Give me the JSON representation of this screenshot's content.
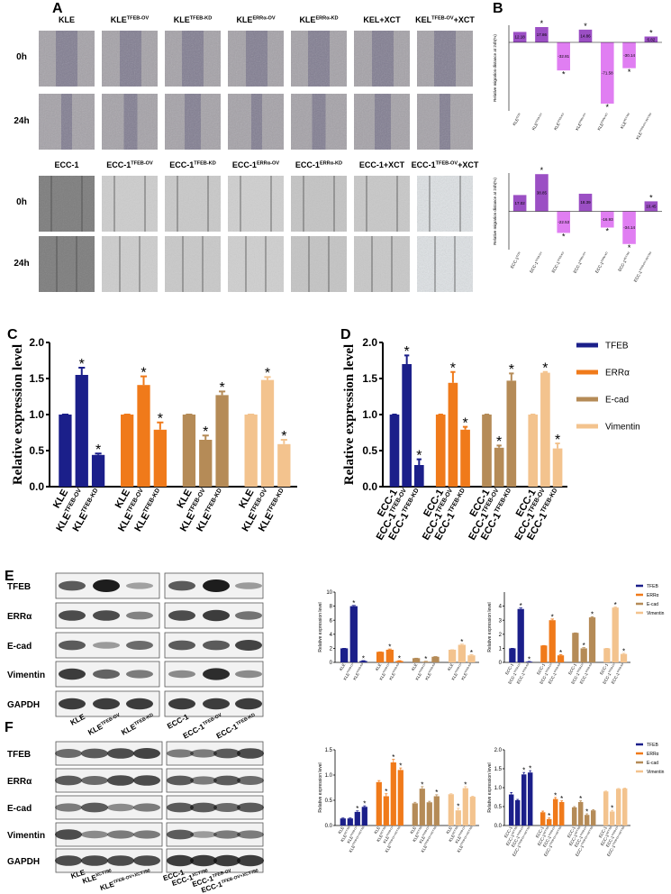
{
  "panel_labels": [
    "A",
    "B",
    "C",
    "D",
    "E",
    "F"
  ],
  "panel_a": {
    "kle_columns": [
      {
        "text": "KLE"
      },
      {
        "text": "KLE",
        "sup": "TFEB-OV"
      },
      {
        "text": "KLE",
        "sup": "TFEB-KD"
      },
      {
        "text": "KLE",
        "sup": "ERRα-OV"
      },
      {
        "text": "KLE",
        "sup": "ERRα-KD"
      },
      {
        "text": "KEL+XCT"
      },
      {
        "text": "KEL",
        "sup": "TFEB-OV",
        "after": "+XCT"
      }
    ],
    "ecc_columns": [
      {
        "text": "ECC-1"
      },
      {
        "text": "ECC-1",
        "sup": "TFEB-OV"
      },
      {
        "text": "ECC-1",
        "sup": "TFEB-KD"
      },
      {
        "text": "ECC-1",
        "sup": "ERRα-OV"
      },
      {
        "text": "ECC-1",
        "sup": "ERRα-KD"
      },
      {
        "text": "ECC-1+XCT"
      },
      {
        "text": "ECC-1",
        "sup": "TFEB-OV",
        "after": "+XCT"
      }
    ],
    "rows": [
      "0h",
      "24h"
    ]
  },
  "panel_e": {
    "proteins": [
      "TFEB",
      "ERRα",
      "E-cad",
      "Vimentin",
      "GAPDH"
    ],
    "lanes": [
      {
        "text": "KLE"
      },
      {
        "text": "KLE",
        "sup": "TFEB-OV"
      },
      {
        "text": "KLE",
        "sup": "TFEB-KD"
      },
      {
        "text": "ECC-1"
      },
      {
        "text": "ECC-1",
        "sup": "TFEB-OV"
      },
      {
        "text": "ECC-1",
        "sup": "TFEB-KD"
      }
    ]
  },
  "panel_f": {
    "proteins": [
      "TFEB",
      "ERRα",
      "E-cad",
      "Vimentin",
      "GAPDH"
    ],
    "lanes": [
      {
        "text": "KLE"
      },
      {
        "text": "KLE",
        "sup": "XCT790"
      },
      {
        "text": "KLE",
        "sup": "TFEB-OV+XCT790"
      },
      {
        "text": "ECC-1"
      },
      {
        "text": "ECC-1",
        "sup": "XCT790"
      },
      {
        "text": "ECC-1",
        "sup": "TFEB-OV"
      },
      {
        "text": "ECC-1",
        "sup": "TFEB-OV+XCT790"
      }
    ]
  },
  "chart_data": [
    {
      "type": "bar",
      "y_label": "Relative migration distance at 24h(%)",
      "sig_label": "*",
      "categories": [
        {
          "text": "KLE",
          "sup": "CON"
        },
        {
          "text": "KLE",
          "sup": "TFEB-OV"
        },
        {
          "text": "KLE",
          "sup": "TFEB-KD"
        },
        {
          "text": "KLE",
          "sup": "ERRα-OV"
        },
        {
          "text": "KLE",
          "sup": "ERRα-KD"
        },
        {
          "text": "KLE",
          "sup": "XCT790"
        },
        {
          "text": "KLE",
          "sup": "TFEB-OV+XCT790"
        }
      ],
      "values": [
        12.18,
        17.86,
        -32.81,
        14.86,
        -71.58,
        -30.14,
        6.82
      ],
      "colors": [
        "#9b4fc4",
        "#9b4fc4",
        "#e07ef2",
        "#9b4fc4",
        "#e07ef2",
        "#e07ef2",
        "#9b4fc4"
      ],
      "significant": [
        false,
        true,
        true,
        true,
        true,
        true,
        true
      ],
      "ylim": [
        -80,
        20
      ]
    },
    {
      "type": "bar",
      "y_label": "Relative migration distance at 24h(%)",
      "sig_label": "*",
      "categories": [
        {
          "text": "ECC-1",
          "sup": "CON"
        },
        {
          "text": "ECC-1",
          "sup": "TFEB-OV"
        },
        {
          "text": "ECC-1",
          "sup": "TFEB-KD"
        },
        {
          "text": "ECC-1",
          "sup": "ERRα-OV"
        },
        {
          "text": "ECC-1",
          "sup": "ERRα-KD"
        },
        {
          "text": "ECC-1",
          "sup": "XCT790"
        },
        {
          "text": "ECC-1",
          "sup": "TFEB-OV+XCT790"
        }
      ],
      "values": [
        17.02,
        38.85,
        -22.53,
        18.39,
        -16.93,
        -34.14,
        10.45
      ],
      "colors": [
        "#9b4fc4",
        "#9b4fc4",
        "#e07ef2",
        "#9b4fc4",
        "#e07ef2",
        "#e07ef2",
        "#9b4fc4"
      ],
      "significant": [
        false,
        true,
        true,
        false,
        true,
        true,
        true
      ],
      "ylim": [
        -40,
        40
      ]
    },
    {
      "type": "grouped_bar",
      "y_label": "Relative expression level",
      "sig_label": "*",
      "categories": [
        {
          "text": "KLE"
        },
        {
          "text": "KLE",
          "sup": "TFEB-OV"
        },
        {
          "text": "KLE",
          "sup": "TFEB-KD"
        }
      ],
      "series": [
        {
          "color": "#1b1f8a",
          "values": [
            1,
            1.55,
            0.44
          ],
          "errors": [
            0,
            0.1,
            0.02
          ],
          "significant": [
            false,
            true,
            true
          ]
        },
        {
          "color": "#f07a1a",
          "values": [
            1,
            1.41,
            0.79
          ],
          "errors": [
            0,
            0.12,
            0.1
          ],
          "significant": [
            false,
            true,
            true
          ]
        },
        {
          "color": "#b58b57",
          "values": [
            1,
            0.65,
            1.27
          ],
          "errors": [
            0,
            0.06,
            0.05
          ],
          "significant": [
            false,
            true,
            true
          ]
        },
        {
          "color": "#f3c38e",
          "values": [
            1,
            1.48,
            0.59
          ],
          "errors": [
            0,
            0.04,
            0.06
          ],
          "significant": [
            false,
            true,
            true
          ]
        }
      ],
      "ylim": [
        0,
        2
      ],
      "yticks": [
        {
          "value": 0,
          "label": "0.0"
        },
        0.5,
        {
          "value": 1,
          "label": "1.0"
        },
        1.5,
        {
          "value": 2,
          "label": "2.0"
        }
      ]
    },
    {
      "type": "grouped_bar",
      "y_label": "Relative expression level",
      "sig_label": "*",
      "legend": "right",
      "categories": [
        {
          "text": "ECC-1"
        },
        {
          "text": "ECC-1",
          "sup": "TFEB-OV"
        },
        {
          "text": "ECC-1",
          "sup": "TFEB-KD"
        }
      ],
      "series": [
        {
          "name": "TFEB",
          "color": "#1b1f8a",
          "values": [
            1,
            1.7,
            0.3
          ],
          "errors": [
            0,
            0.12,
            0.08
          ],
          "significant": [
            false,
            true,
            true
          ]
        },
        {
          "name": "ERRα",
          "color": "#f07a1a",
          "values": [
            1,
            1.44,
            0.79
          ],
          "errors": [
            0,
            0.15,
            0.04
          ],
          "significant": [
            false,
            true,
            true
          ]
        },
        {
          "name": "E-cad",
          "color": "#b58b57",
          "values": [
            1,
            0.54,
            1.47
          ],
          "errors": [
            0,
            0.03,
            0.1
          ],
          "significant": [
            false,
            true,
            true
          ]
        },
        {
          "name": "Vimentin",
          "color": "#f3c38e",
          "values": [
            1,
            1.58,
            0.53
          ],
          "errors": [
            0,
            0.01,
            0.07
          ],
          "significant": [
            false,
            true,
            true
          ]
        }
      ],
      "ylim": [
        0,
        2
      ],
      "yticks": [
        {
          "value": 0,
          "label": "0.0"
        },
        0.5,
        {
          "value": 1,
          "label": "1.0"
        },
        1.5,
        {
          "value": 2,
          "label": "2.0"
        }
      ]
    },
    {
      "type": "grouped_bar",
      "y_label": "Relative expression level",
      "sig_label": "*",
      "categories": [
        {
          "text": "KLE"
        },
        {
          "text": "KLE",
          "sup": "TFEB-OV"
        },
        {
          "text": "KLE",
          "sup": "TFEB-KD"
        }
      ],
      "series": [
        {
          "color": "#1b1f8a",
          "values": [
            2,
            8,
            0.2
          ],
          "errors": [
            0,
            0.1,
            0.05
          ],
          "significant": [
            false,
            true,
            true
          ]
        },
        {
          "color": "#f07a1a",
          "values": [
            1.5,
            1.8,
            0.2
          ],
          "errors": [
            0,
            0.1,
            0.05
          ],
          "significant": [
            false,
            true,
            true
          ]
        },
        {
          "color": "#b58b57",
          "values": [
            0.6,
            0.1,
            0.8
          ],
          "errors": [
            0,
            0.05,
            0.05
          ],
          "significant": [
            false,
            true,
            false
          ]
        },
        {
          "color": "#f3c38e",
          "values": [
            1.8,
            2.5,
            1
          ],
          "errors": [
            0,
            0.1,
            0.1
          ],
          "significant": [
            false,
            true,
            true
          ]
        }
      ],
      "ylim": [
        0,
        10
      ],
      "yticks": [
        0,
        2,
        4,
        6,
        8,
        10
      ]
    },
    {
      "type": "grouped_bar",
      "y_label": "Relative expression level",
      "sig_label": "*",
      "legend": "right",
      "categories": [
        {
          "text": "ECC-1"
        },
        {
          "text": "ECC-1",
          "sup": "TFEB-OV"
        },
        {
          "text": "ECC-1",
          "sup": "TFEB-KD"
        }
      ],
      "series": [
        {
          "name": "TFEB",
          "color": "#1b1f8a",
          "values": [
            1,
            3.8,
            0.05
          ],
          "errors": [
            0,
            0.08,
            0.02
          ],
          "significant": [
            false,
            true,
            true
          ]
        },
        {
          "name": "ERRα",
          "color": "#f07a1a",
          "values": [
            1.2,
            3,
            0.5
          ],
          "errors": [
            0,
            0.08,
            0.05
          ],
          "significant": [
            false,
            true,
            true
          ]
        },
        {
          "name": "E-cad",
          "color": "#b58b57",
          "values": [
            2.1,
            1,
            3.2
          ],
          "errors": [
            0,
            0.05,
            0.05
          ],
          "significant": [
            false,
            true,
            true
          ]
        },
        {
          "name": "Vimentin",
          "color": "#f3c38e",
          "values": [
            1,
            3.9,
            0.6
          ],
          "errors": [
            0,
            0.05,
            0.05
          ],
          "significant": [
            false,
            true,
            true
          ]
        }
      ],
      "ylim": [
        0,
        5
      ],
      "yticks": [
        0,
        1,
        2,
        3,
        4
      ]
    },
    {
      "type": "grouped_bar",
      "y_label": "Relative expression level",
      "sig_label": "*",
      "categories": [
        {
          "text": "KLE"
        },
        {
          "text": "KLE",
          "sup": "XCT790"
        },
        {
          "text": "KLE",
          "sup": "TFEB-OV"
        },
        {
          "text": "KLE",
          "sup": "TFEB-OV+XCT790"
        }
      ],
      "series": [
        {
          "color": "#1b1f8a",
          "values": [
            0.14,
            0.14,
            0.27,
            0.37
          ],
          "errors": [
            0.01,
            0.01,
            0.02,
            0.02
          ],
          "significant": [
            false,
            false,
            true,
            true
          ]
        },
        {
          "color": "#f07a1a",
          "values": [
            0.86,
            0.58,
            1.25,
            1.1
          ],
          "errors": [
            0.03,
            0.05,
            0.06,
            0.04
          ],
          "significant": [
            false,
            true,
            true,
            true
          ]
        },
        {
          "color": "#b58b57",
          "values": [
            0.44,
            0.73,
            0.46,
            0.58
          ],
          "errors": [
            0.02,
            0.04,
            0.02,
            0.03
          ],
          "significant": [
            false,
            true,
            false,
            true
          ]
        },
        {
          "color": "#f3c38e",
          "values": [
            0.62,
            0.3,
            0.74,
            0.57
          ],
          "errors": [
            0.01,
            0.04,
            0.03,
            0.01
          ],
          "significant": [
            false,
            true,
            true,
            false
          ]
        }
      ],
      "ylim": [
        0,
        1.5
      ],
      "yticks": [
        {
          "value": 0,
          "label": "0.0"
        },
        0.5,
        {
          "value": 1,
          "label": "1.0"
        },
        1.5
      ]
    },
    {
      "type": "grouped_bar",
      "y_label": "Relative expression level",
      "sig_label": "*",
      "legend": "right",
      "categories": [
        {
          "text": "ECC-1"
        },
        {
          "text": "ECC-1",
          "sup": "XCT790"
        },
        {
          "text": "ECC-1",
          "sup": "TFEB-OV"
        },
        {
          "text": "ECC-1",
          "sup": "TFEB-OV+XCT790"
        }
      ],
      "series": [
        {
          "name": "TFEB",
          "color": "#1b1f8a",
          "values": [
            0.82,
            0.67,
            1.35,
            1.4
          ],
          "errors": [
            0.05,
            0.02,
            0.05,
            0.05
          ],
          "significant": [
            false,
            false,
            true,
            true
          ]
        },
        {
          "name": "ERRα",
          "color": "#f07a1a",
          "values": [
            0.35,
            0.17,
            0.7,
            0.62
          ],
          "errors": [
            0.03,
            0.03,
            0.04,
            0.03
          ],
          "significant": [
            false,
            true,
            true,
            true
          ]
        },
        {
          "name": "E-cad",
          "color": "#b58b57",
          "values": [
            0.48,
            0.62,
            0.28,
            0.4
          ],
          "errors": [
            0.02,
            0.03,
            0.03,
            0.02
          ],
          "significant": [
            false,
            true,
            true,
            false
          ]
        },
        {
          "name": "Vimentin",
          "color": "#f3c38e",
          "values": [
            0.9,
            0.37,
            0.97,
            0.98
          ],
          "errors": [
            0.01,
            0.03,
            0.01,
            0.01
          ],
          "significant": [
            false,
            true,
            false,
            false
          ]
        }
      ],
      "ylim": [
        0,
        2
      ],
      "yticks": [
        {
          "value": 0,
          "label": "0.0"
        },
        0.5,
        {
          "value": 1,
          "label": "1.0"
        },
        1.5,
        {
          "value": 2,
          "label": "2.0"
        }
      ]
    }
  ]
}
